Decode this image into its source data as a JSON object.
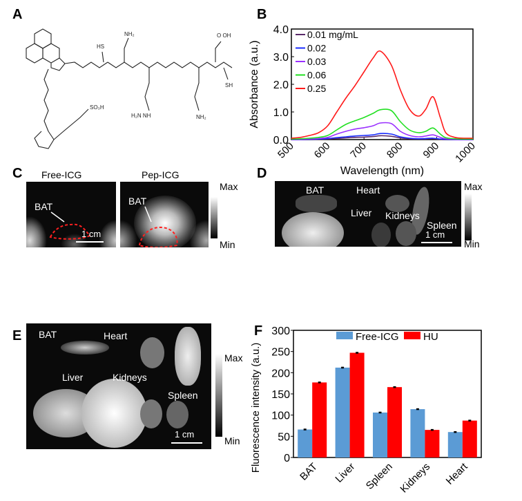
{
  "panels": {
    "a": "A",
    "b": "B",
    "c": "C",
    "d": "D",
    "e": "E",
    "f": "F"
  },
  "panel_c": {
    "titles": [
      "Free-ICG",
      "Pep-ICG"
    ],
    "roi_label": "BAT",
    "scale_bar": "1 cm",
    "colorbar_max": "Max",
    "colorbar_min": "Min",
    "roi_color": "#ff2020"
  },
  "panel_d": {
    "labels": {
      "bat": "BAT",
      "heart": "Heart",
      "liver": "Liver",
      "kidneys": "Kidneys",
      "spleen": "Spleen"
    },
    "scale_bar": "1 cm",
    "colorbar_max": "Max",
    "colorbar_min": "Min"
  },
  "panel_e": {
    "labels": {
      "bat": "BAT",
      "heart": "Heart",
      "liver": "Liver",
      "kidneys": "Kidneys",
      "spleen": "Spleen"
    },
    "scale_bar": "1 cm",
    "colorbar_max": "Max",
    "colorbar_min": "Min"
  },
  "chart_data": [
    {
      "type": "line",
      "panel": "B",
      "xlabel": "Wavelength (nm)",
      "ylabel": "Absorbance (a.u.)",
      "xlim": [
        500,
        1000
      ],
      "ylim": [
        0,
        4
      ],
      "xticks": [
        "500",
        "600",
        "700",
        "800",
        "900",
        "1000"
      ],
      "yticks": [
        "0.0",
        "1.0",
        "2.0",
        "3.0",
        "4.0"
      ],
      "legend": "top-left",
      "grid": false,
      "x": [
        500,
        525,
        550,
        575,
        600,
        625,
        650,
        675,
        700,
        725,
        745,
        775,
        800,
        825,
        850,
        870,
        890,
        910,
        925,
        950,
        975,
        1000
      ],
      "series": [
        {
          "name": "0.01 mg/mL",
          "color": "#5a2a6a",
          "values": [
            0,
            0,
            0,
            0.01,
            0.02,
            0.04,
            0.06,
            0.08,
            0.09,
            0.11,
            0.14,
            0.12,
            0.06,
            0.03,
            0.02,
            0.02,
            0.03,
            0.01,
            0,
            0,
            0,
            0
          ]
        },
        {
          "name": "0.02",
          "color": "#1a2cff",
          "values": [
            0,
            0,
            0.01,
            0.02,
            0.04,
            0.07,
            0.1,
            0.13,
            0.15,
            0.17,
            0.22,
            0.2,
            0.1,
            0.05,
            0.03,
            0.04,
            0.05,
            0.02,
            0.01,
            0,
            0,
            0
          ]
        },
        {
          "name": "0.03",
          "color": "#9a30ff",
          "values": [
            0.01,
            0.01,
            0.02,
            0.04,
            0.08,
            0.2,
            0.3,
            0.38,
            0.43,
            0.5,
            0.6,
            0.58,
            0.3,
            0.15,
            0.1,
            0.13,
            0.17,
            0.08,
            0.03,
            0.01,
            0.01,
            0.01
          ]
        },
        {
          "name": "0.06",
          "color": "#22e022",
          "values": [
            0.02,
            0.03,
            0.05,
            0.08,
            0.15,
            0.35,
            0.55,
            0.68,
            0.8,
            0.95,
            1.08,
            1.05,
            0.65,
            0.35,
            0.25,
            0.3,
            0.42,
            0.2,
            0.07,
            0.03,
            0.02,
            0.02
          ]
        },
        {
          "name": "0.25",
          "color": "#ff1a1a",
          "values": [
            0.05,
            0.08,
            0.15,
            0.25,
            0.5,
            1.0,
            1.5,
            1.95,
            2.45,
            2.95,
            3.2,
            2.7,
            1.8,
            1.1,
            0.85,
            1.1,
            1.55,
            0.8,
            0.25,
            0.08,
            0.05,
            0.05
          ]
        }
      ]
    },
    {
      "type": "bar",
      "panel": "F",
      "ylabel": "Fluorescence intensity (a.u.)",
      "ylim": [
        0,
        300
      ],
      "yticks": [
        "0",
        "50",
        "100",
        "150",
        "200",
        "250",
        "300"
      ],
      "legend": "top",
      "grid": false,
      "categories": [
        "BAT",
        "Liver",
        "Spleen",
        "Kidneys",
        "Heart"
      ],
      "series": [
        {
          "name": "Free-ICG",
          "color": "#5b9bd5",
          "values": [
            66,
            212,
            106,
            114,
            60
          ]
        },
        {
          "name": "HU",
          "color": "#ff0000",
          "values": [
            177,
            247,
            166,
            65,
            87
          ]
        }
      ]
    }
  ]
}
